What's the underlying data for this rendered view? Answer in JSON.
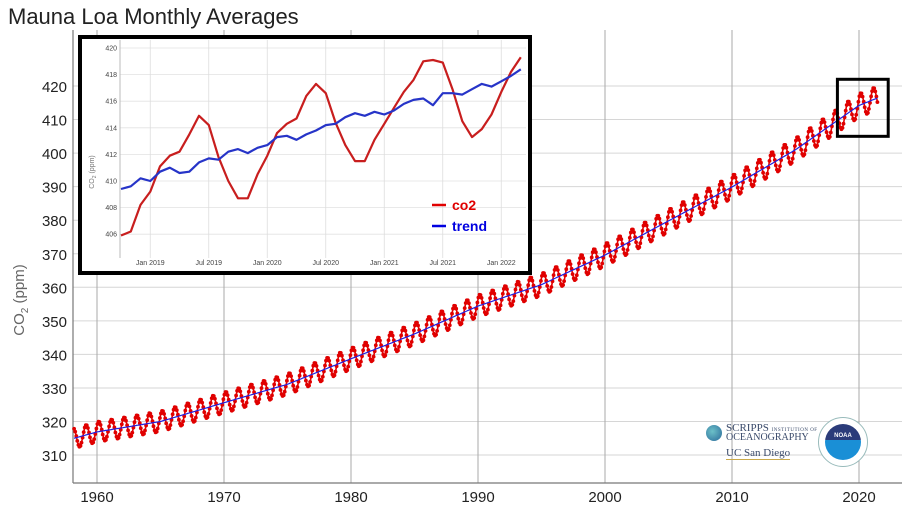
{
  "chart_data": [
    {
      "type": "line",
      "title": "Mauna Loa Monthly Averages",
      "xlabel": "",
      "ylabel": "CO2 (ppm)",
      "xlim": [
        1958.2,
        2021.6
      ],
      "ylim": [
        301,
        431
      ],
      "xticks": [
        1960,
        1970,
        1980,
        1990,
        2000,
        2010,
        2020
      ],
      "yticks": [
        310,
        320,
        330,
        340,
        350,
        360,
        370,
        380,
        390,
        400,
        410,
        420
      ],
      "grid": true,
      "legend": "none",
      "series": [
        {
          "name": "co2",
          "color": "#e00000",
          "style": "line with point markers",
          "description": "monthly mean with seasonal cycle (amplitude ~3 ppm around trend)"
        },
        {
          "name": "trend",
          "color": "#2020e0",
          "style": "thin line"
        }
      ],
      "trend_points": {
        "x": [
          1958.2,
          1960,
          1965,
          1970,
          1975,
          1980,
          1985,
          1990,
          1995,
          2000,
          2005,
          2010,
          2015,
          2020,
          2021.5
        ],
        "y": [
          315.0,
          316.9,
          320.0,
          325.6,
          331.1,
          338.7,
          346.1,
          354.4,
          360.8,
          369.6,
          379.8,
          389.9,
          401.0,
          414.2,
          416.5
        ]
      },
      "highlight_box": {
        "x": [
          2018.3,
          2022.3
        ],
        "y": [
          405,
          422
        ]
      }
    },
    {
      "type": "line",
      "title": "",
      "xlabel": "",
      "ylabel": "CO2 (ppm)",
      "ylim": [
        404.7,
        420.5
      ],
      "xticks": [
        "Jan 2019",
        "Jul 2019",
        "Jan 2020",
        "Jul 2020",
        "Jan 2021",
        "Jul 2021",
        "Jan 2022"
      ],
      "yticks": [
        406,
        408,
        410,
        412,
        414,
        416,
        418,
        420
      ],
      "grid": true,
      "legend": "bottom-right",
      "x": [
        "2018-10",
        "2018-11",
        "2018-12",
        "2019-01",
        "2019-02",
        "2019-03",
        "2019-04",
        "2019-05",
        "2019-06",
        "2019-07",
        "2019-08",
        "2019-09",
        "2019-10",
        "2019-11",
        "2019-12",
        "2020-01",
        "2020-02",
        "2020-03",
        "2020-04",
        "2020-05",
        "2020-06",
        "2020-07",
        "2020-08",
        "2020-09",
        "2020-10",
        "2020-11",
        "2020-12",
        "2021-01",
        "2021-02",
        "2021-03",
        "2021-04",
        "2021-05",
        "2021-06",
        "2021-07",
        "2021-08",
        "2021-09",
        "2021-10",
        "2021-11",
        "2021-12",
        "2022-01",
        "2022-02",
        "2022-03"
      ],
      "series": [
        {
          "name": "co2",
          "color": "#c81e1e",
          "values": [
            405.9,
            406.2,
            408.2,
            409.2,
            411.1,
            411.9,
            412.2,
            413.5,
            414.9,
            414.2,
            411.8,
            410.0,
            408.7,
            408.7,
            410.5,
            411.9,
            413.6,
            414.3,
            414.7,
            416.4,
            417.3,
            416.6,
            414.4,
            412.7,
            411.5,
            411.5,
            413.1,
            414.3,
            415.5,
            416.7,
            417.6,
            419.0,
            419.1,
            418.9,
            416.9,
            414.5,
            413.3,
            413.9,
            415.0,
            416.7,
            418.2,
            419.3
          ]
        },
        {
          "name": "trend",
          "color": "#2634c8",
          "values": [
            409.4,
            409.6,
            410.2,
            410.0,
            410.7,
            411.0,
            410.6,
            410.7,
            411.4,
            411.7,
            411.6,
            412.2,
            412.4,
            412.1,
            412.5,
            412.7,
            413.3,
            413.4,
            413.1,
            413.5,
            413.8,
            414.2,
            414.3,
            414.8,
            415.1,
            414.9,
            415.2,
            415.0,
            415.3,
            415.8,
            416.1,
            416.2,
            415.7,
            416.6,
            416.6,
            416.5,
            416.9,
            417.3,
            417.1,
            417.5,
            417.9,
            418.4
          ]
        }
      ]
    }
  ],
  "main": {
    "title": "Mauna Loa Monthly Averages",
    "ylabel_main": "CO",
    "ylabel_sub": "2",
    "ylabel_unit": " (ppm)"
  },
  "inset": {
    "ylabel_main": "CO",
    "ylabel_sub": "2",
    "ylabel_unit": " (ppm)",
    "legend": [
      {
        "label": "co2",
        "color": "#e00000"
      },
      {
        "label": "trend",
        "color": "#0000e0"
      }
    ]
  },
  "logos": {
    "scripps_line1": "SCRIPPS",
    "scripps_small": "INSTITUTION OF",
    "scripps_line2": "OCEANOGRAPHY",
    "ucsd": "UC San Diego",
    "noaa": "NOAA"
  }
}
